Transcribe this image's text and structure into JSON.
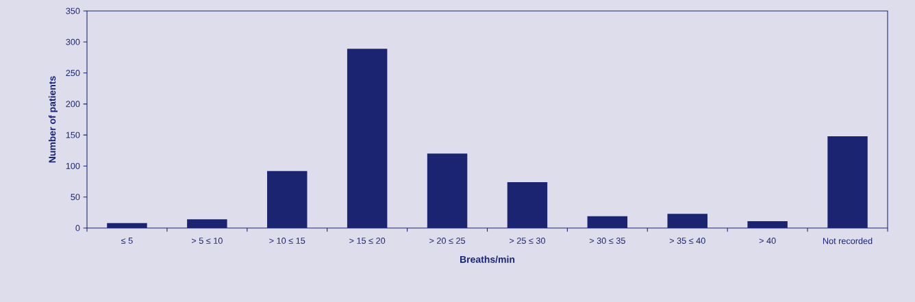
{
  "chart_data": {
    "type": "bar",
    "xlabel": "Breaths/min",
    "ylabel": "Number of patients",
    "categories": [
      "≤ 5",
      "> 5 ≤ 10",
      "> 10 ≤ 15",
      "> 15 ≤ 20",
      "> 20 ≤ 25",
      "> 25 ≤ 30",
      "> 30 ≤ 35",
      "> 35 ≤ 40",
      "> 40",
      "Not recorded"
    ],
    "values": [
      8,
      14,
      92,
      289,
      120,
      74,
      19,
      23,
      11,
      148
    ],
    "color": "#1a2470",
    "ylim": [
      0,
      350
    ],
    "yticks": [
      0,
      50,
      100,
      150,
      200,
      250,
      300,
      350
    ]
  }
}
